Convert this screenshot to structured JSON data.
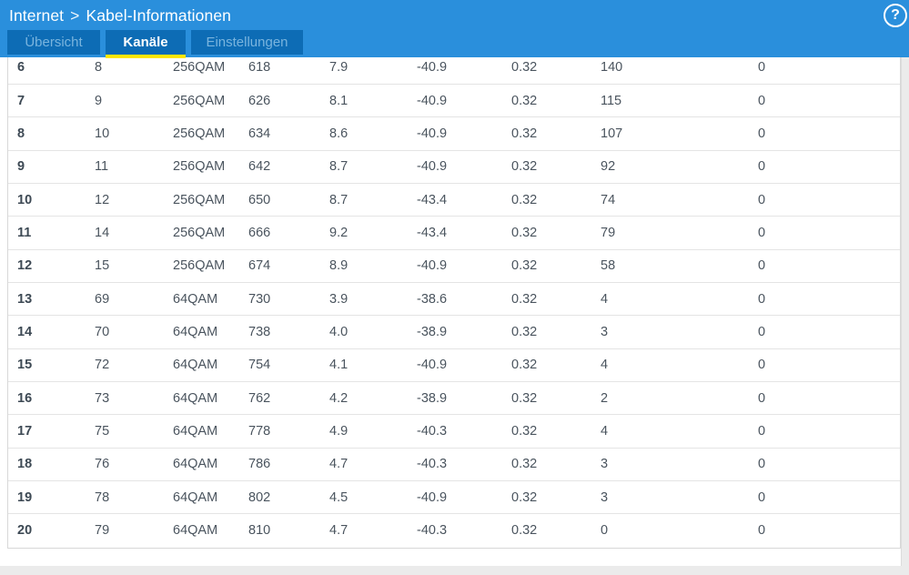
{
  "header": {
    "breadcrumb": {
      "section": "Internet",
      "separator": ">",
      "page": "Kabel-Informationen"
    },
    "help_label": "?",
    "bg_color": "#2a8fdc"
  },
  "tabs": {
    "bg_color": "#0d6cb5",
    "active_underline_color": "#ffe600",
    "inactive_text_color": "#79b4de",
    "items": [
      {
        "label": "Übersicht",
        "active": false
      },
      {
        "label": "Kanäle",
        "active": true
      },
      {
        "label": "Einstellungen",
        "active": false
      }
    ]
  },
  "table": {
    "rows": [
      [
        "6",
        "8",
        "256QAM",
        "618",
        "7.9",
        "-40.9",
        "0.32",
        "140",
        "0"
      ],
      [
        "7",
        "9",
        "256QAM",
        "626",
        "8.1",
        "-40.9",
        "0.32",
        "115",
        "0"
      ],
      [
        "8",
        "10",
        "256QAM",
        "634",
        "8.6",
        "-40.9",
        "0.32",
        "107",
        "0"
      ],
      [
        "9",
        "11",
        "256QAM",
        "642",
        "8.7",
        "-40.9",
        "0.32",
        "92",
        "0"
      ],
      [
        "10",
        "12",
        "256QAM",
        "650",
        "8.7",
        "-43.4",
        "0.32",
        "74",
        "0"
      ],
      [
        "11",
        "14",
        "256QAM",
        "666",
        "9.2",
        "-43.4",
        "0.32",
        "79",
        "0"
      ],
      [
        "12",
        "15",
        "256QAM",
        "674",
        "8.9",
        "-40.9",
        "0.32",
        "58",
        "0"
      ],
      [
        "13",
        "69",
        "64QAM",
        "730",
        "3.9",
        "-38.6",
        "0.32",
        "4",
        "0"
      ],
      [
        "14",
        "70",
        "64QAM",
        "738",
        "4.0",
        "-38.9",
        "0.32",
        "3",
        "0"
      ],
      [
        "15",
        "72",
        "64QAM",
        "754",
        "4.1",
        "-40.9",
        "0.32",
        "4",
        "0"
      ],
      [
        "16",
        "73",
        "64QAM",
        "762",
        "4.2",
        "-38.9",
        "0.32",
        "2",
        "0"
      ],
      [
        "17",
        "75",
        "64QAM",
        "778",
        "4.9",
        "-40.3",
        "0.32",
        "4",
        "0"
      ],
      [
        "18",
        "76",
        "64QAM",
        "786",
        "4.7",
        "-40.3",
        "0.32",
        "3",
        "0"
      ],
      [
        "19",
        "78",
        "64QAM",
        "802",
        "4.5",
        "-40.9",
        "0.32",
        "3",
        "0"
      ],
      [
        "20",
        "79",
        "64QAM",
        "810",
        "4.7",
        "-40.3",
        "0.32",
        "0",
        "0"
      ]
    ]
  }
}
